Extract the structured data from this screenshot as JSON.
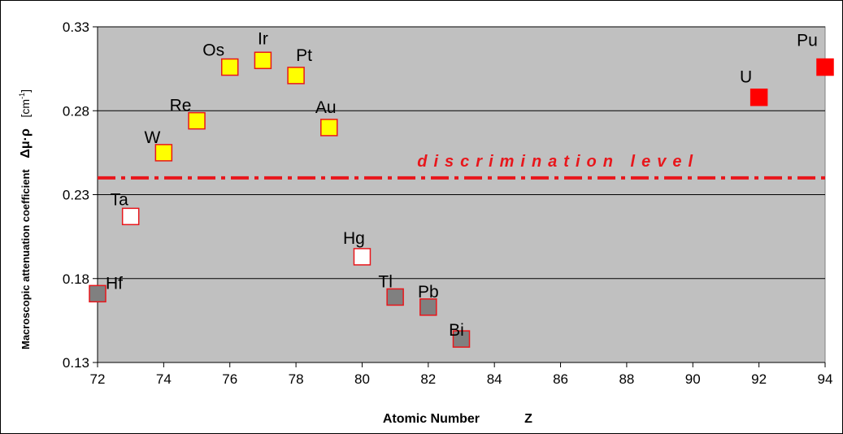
{
  "chart_data": {
    "type": "scatter",
    "xlabel": "Atomic Number Z",
    "ylabel": "Macroscopic attenuation coefficient Δμ·ρ [cm⁻¹]",
    "xlim": [
      72,
      94
    ],
    "ylim": [
      0.13,
      0.33
    ],
    "x_ticks": [
      "72",
      "74",
      "76",
      "78",
      "80",
      "82",
      "84",
      "86",
      "88",
      "90",
      "92",
      "94"
    ],
    "y_ticks": [
      "0.13",
      "0.18",
      "0.23",
      "0.28",
      "0.33"
    ],
    "grid": "horizontal",
    "legend": "none",
    "reference_line": {
      "label": "discrimination level",
      "y": 0.24,
      "color": "#e8161b",
      "style": "dash-dot"
    },
    "points": [
      {
        "label": "Hf",
        "x": 72,
        "y": 0.171,
        "fill": "#808080",
        "edge": "#e8161b"
      },
      {
        "label": "Ta",
        "x": 73,
        "y": 0.217,
        "fill": "#ffffff",
        "edge": "#e8161b"
      },
      {
        "label": "W",
        "x": 74,
        "y": 0.255,
        "fill": "#ffff00",
        "edge": "#e8161b"
      },
      {
        "label": "Re",
        "x": 75,
        "y": 0.274,
        "fill": "#ffff00",
        "edge": "#e8161b"
      },
      {
        "label": "Os",
        "x": 76,
        "y": 0.306,
        "fill": "#ffff00",
        "edge": "#e8161b"
      },
      {
        "label": "Ir",
        "x": 77,
        "y": 0.31,
        "fill": "#ffff00",
        "edge": "#e8161b"
      },
      {
        "label": "Pt",
        "x": 78,
        "y": 0.301,
        "fill": "#ffff00",
        "edge": "#e8161b"
      },
      {
        "label": "Au",
        "x": 79,
        "y": 0.27,
        "fill": "#ffff00",
        "edge": "#e8161b"
      },
      {
        "label": "Hg",
        "x": 80,
        "y": 0.193,
        "fill": "#ffffff",
        "edge": "#e8161b"
      },
      {
        "label": "Tl",
        "x": 81,
        "y": 0.169,
        "fill": "#808080",
        "edge": "#e8161b"
      },
      {
        "label": "Pb",
        "x": 82,
        "y": 0.163,
        "fill": "#808080",
        "edge": "#e8161b"
      },
      {
        "label": "Bi",
        "x": 83,
        "y": 0.144,
        "fill": "#808080",
        "edge": "#e8161b"
      },
      {
        "label": "U",
        "x": 92,
        "y": 0.288,
        "fill": "#ff0000",
        "edge": "#ff0000"
      },
      {
        "label": "Pu",
        "x": 94,
        "y": 0.306,
        "fill": "#ff0000",
        "edge": "#ff0000"
      }
    ]
  },
  "axis_titles": {
    "x_main": "Atomic Number",
    "x_symbol": "Z",
    "y_main": "Macroscopic attenuation coefficient",
    "y_symbol": "Δμ·ρ",
    "y_unit_open": "[cm",
    "y_unit_sup": "-1",
    "y_unit_close": "]"
  },
  "colors": {
    "plot_bg": "#c0c0c0",
    "grid": "#000000",
    "accent": "#e8161b"
  }
}
